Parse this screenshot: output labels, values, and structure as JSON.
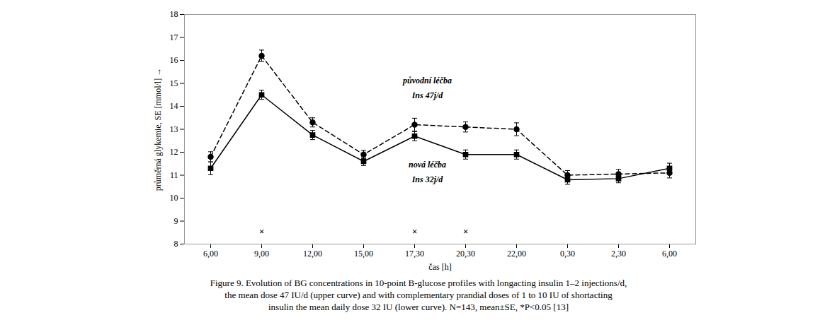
{
  "chart_data": {
    "type": "line",
    "categories": [
      "6,00",
      "9,00",
      "12,00",
      "15,00",
      "17,30",
      "20,30",
      "22,00",
      "0,30",
      "2,30",
      "6,00"
    ],
    "series": [
      {
        "name": "upper",
        "color": "#000000",
        "marker": "circle",
        "line_style": "dashed",
        "values": [
          11.8,
          16.2,
          13.3,
          11.9,
          13.2,
          13.1,
          13.0,
          11.0,
          11.05,
          11.1
        ],
        "errors": [
          0.22,
          0.25,
          0.2,
          0.18,
          0.28,
          0.22,
          0.28,
          0.2,
          0.2,
          0.22
        ]
      },
      {
        "name": "lower",
        "color": "#000000",
        "marker": "square",
        "line_style": "solid",
        "values": [
          11.3,
          14.5,
          12.75,
          11.6,
          12.7,
          11.9,
          11.9,
          10.8,
          10.85,
          11.3
        ],
        "errors": [
          0.28,
          0.2,
          0.2,
          0.18,
          0.2,
          0.2,
          0.2,
          0.2,
          0.18,
          0.22
        ]
      }
    ],
    "ylim": [
      8,
      18
    ],
    "yticks": [
      8,
      9,
      10,
      11,
      12,
      13,
      14,
      15,
      16,
      17,
      18
    ],
    "ylabel": "průměrná glykemie, SE [mmol/l]",
    "xlabel": "čas [h]",
    "annotations": [
      {
        "text": "původní léčba",
        "y": 15.0
      },
      {
        "text": "Ins 47j/d",
        "y": 14.35
      },
      {
        "text": "nová léčba",
        "y": 11.35
      },
      {
        "text": "Ins 32j/d",
        "y": 10.7
      }
    ],
    "significance_marks": [
      {
        "x": 1,
        "y": 8.55,
        "text": "×"
      },
      {
        "x": 4,
        "y": 8.55,
        "text": "×"
      },
      {
        "x": 5,
        "y": 8.55,
        "text": "×"
      }
    ],
    "caption": [
      "Figure 9. Evolution of BG concentrations in 10-point B-glucose profiles with longacting insulin 1–2 injections/d,",
      "the mean dose 47 IU/d (upper curve) and with complementary prandial doses of 1 to 10 IU of shortacting",
      "insulin the mean daily dose 32 IU (lower curve). N=143, mean±SE, *P<0.05 [13]"
    ]
  }
}
